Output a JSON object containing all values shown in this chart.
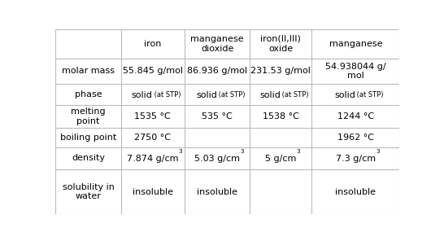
{
  "col_headers": [
    "",
    "iron",
    "manganese\ndioxide",
    "iron(II,III)\noxide",
    "manganese"
  ],
  "row_labels": [
    "molar mass",
    "phase",
    "melting\npoint",
    "boiling point",
    "density",
    "solubility in\nwater"
  ],
  "cells": [
    [
      "55.845 g/mol",
      "86.936 g/mol",
      "231.53 g/mol",
      "54.938044 g/\nmol"
    ],
    [
      "solid_stp",
      "solid_stp",
      "solid_stp",
      "solid_stp"
    ],
    [
      "1535 °C",
      "535 °C",
      "1538 °C",
      "1244 °C"
    ],
    [
      "2750 °C",
      "",
      "",
      "1962 °C"
    ],
    [
      "7.874 g/cm^3",
      "5.03 g/cm^3",
      "5 g/cm^3",
      "7.3 g/cm^3"
    ],
    [
      "insoluble",
      "insoluble",
      "",
      "insoluble"
    ]
  ],
  "bg_color": "#ffffff",
  "text_color": "#000000",
  "line_color": "#bbbbbb",
  "font_size": 8.0,
  "small_font_size": 6.0,
  "col_starts": [
    0.0,
    0.19,
    0.375,
    0.565,
    0.745
  ],
  "col_ends": [
    0.19,
    0.375,
    0.565,
    0.745,
    1.0
  ],
  "row_tops": [
    1.0,
    0.84,
    0.705,
    0.59,
    0.465,
    0.36,
    0.245,
    0.0
  ]
}
